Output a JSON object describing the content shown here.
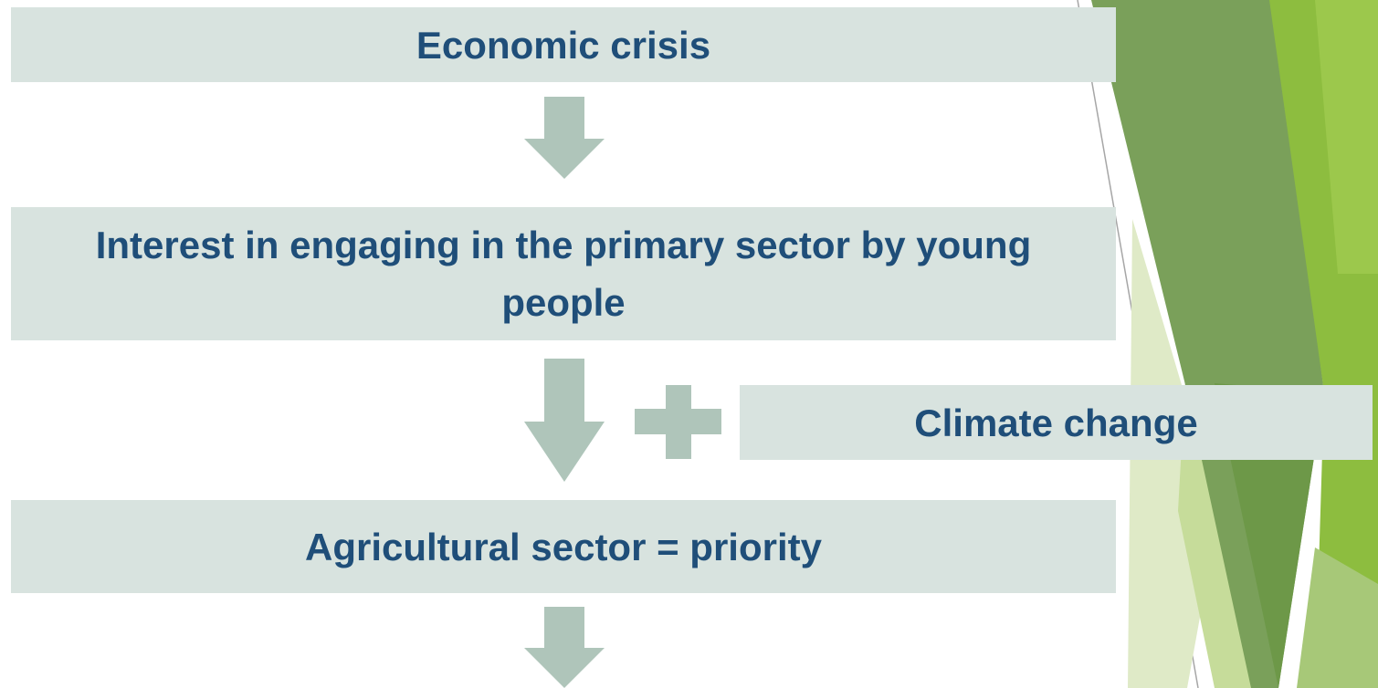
{
  "boxes": [
    {
      "label": "Economic crisis"
    },
    {
      "label": "Interest in engaging in the primary sector by young people"
    },
    {
      "label": "Climate change"
    },
    {
      "label": "Agricultural sector = priority"
    }
  ]
}
